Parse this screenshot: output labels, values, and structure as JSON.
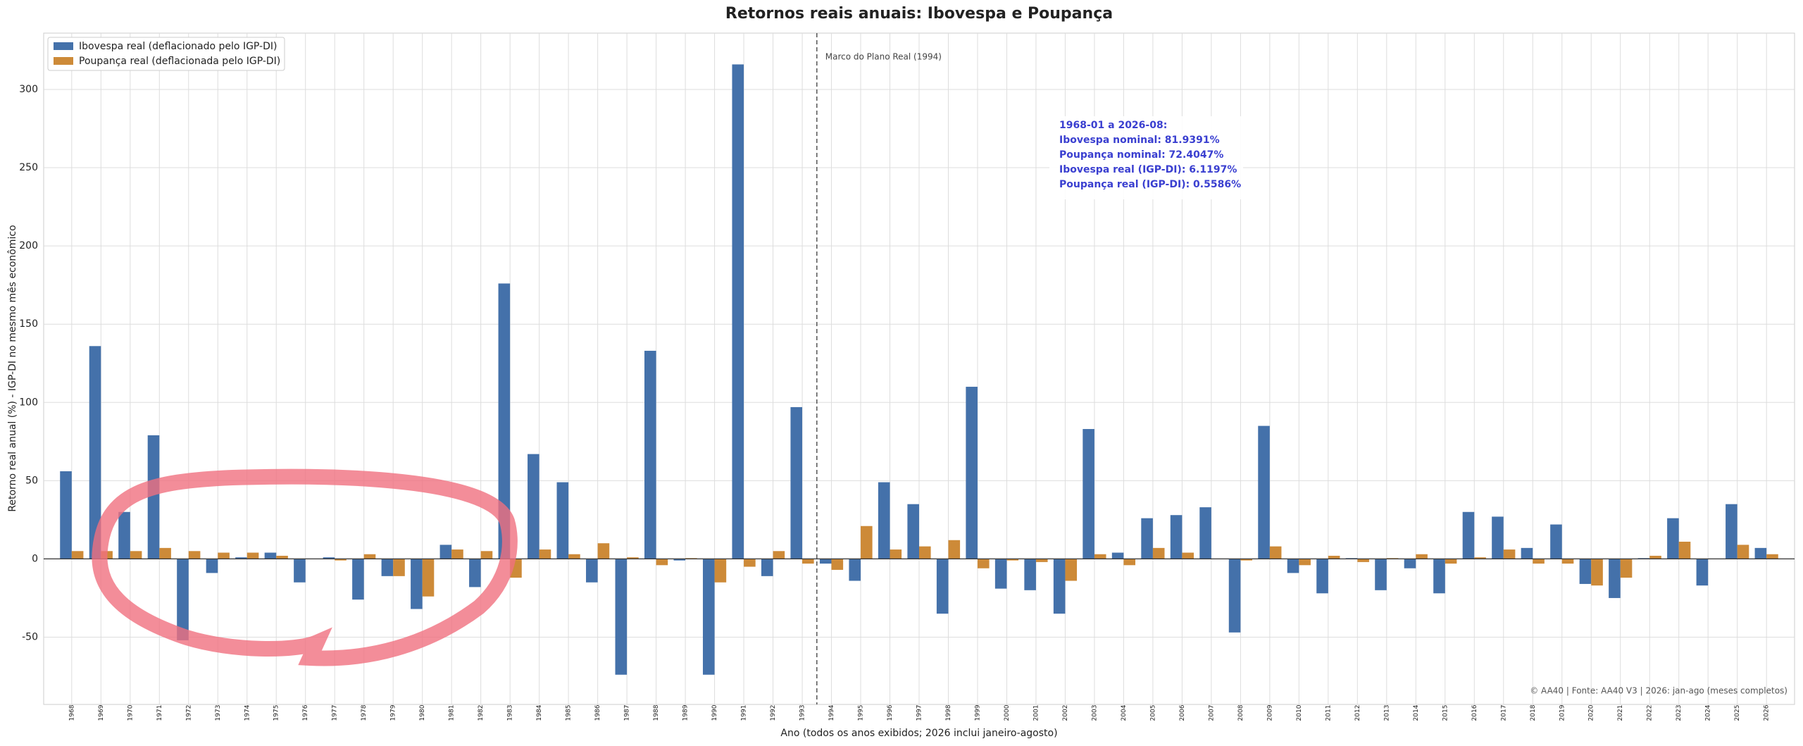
{
  "chart_data": {
    "type": "bar",
    "title": "Retornos reais anuais: Ibovespa e Poupança",
    "xlabel": "Ano (todos os anos exibidos; 2026 inclui janeiro-agosto)",
    "ylabel": "Retorno real anual (%) - IGP-DI no mesmo mês econômico",
    "x": [
      1968,
      1969,
      1970,
      1971,
      1972,
      1973,
      1974,
      1975,
      1976,
      1977,
      1978,
      1979,
      1980,
      1981,
      1982,
      1983,
      1984,
      1985,
      1986,
      1987,
      1988,
      1989,
      1990,
      1991,
      1992,
      1993,
      1994,
      1995,
      1996,
      1997,
      1998,
      1999,
      2000,
      2001,
      2002,
      2003,
      2004,
      2005,
      2006,
      2007,
      2008,
      2009,
      2010,
      2011,
      2012,
      2013,
      2014,
      2015,
      2016,
      2017,
      2018,
      2019,
      2020,
      2021,
      2022,
      2023,
      2024,
      2025,
      2026
    ],
    "series": [
      {
        "name": "Ibovespa real (deflacionado pelo IGP-DI)",
        "color": "#4471aa",
        "values": [
          56,
          136,
          30,
          79,
          -52,
          -9,
          1,
          4,
          -15,
          1,
          -26,
          -11,
          -32,
          9,
          -18,
          176,
          67,
          49,
          -15,
          -74,
          133,
          -1,
          -74,
          316,
          -11,
          97,
          -3,
          -14,
          49,
          35,
          -35,
          110,
          -19,
          -20,
          -35,
          83,
          4,
          26,
          28,
          33,
          -47,
          85,
          -9,
          -22,
          0.5,
          -20,
          -6,
          -22,
          30,
          27,
          7,
          22,
          -16,
          -25,
          0.5,
          26,
          -17,
          35,
          7
        ]
      },
      {
        "name": "Poupança real (deflacionada pelo IGP-DI)",
        "color": "#cd8a38",
        "values": [
          5,
          5,
          5,
          7,
          5,
          4,
          4,
          2,
          0,
          -1,
          3,
          -11,
          -24,
          6,
          5,
          -12,
          6,
          3,
          10,
          1,
          -4,
          0.5,
          -15,
          -5,
          5,
          -3,
          -7,
          21,
          6,
          8,
          12,
          -6,
          -1,
          -2,
          -14,
          3,
          -4,
          7,
          4,
          0,
          -1,
          8,
          -4,
          2,
          -2,
          0.5,
          3,
          -3,
          1,
          6,
          -3,
          -3,
          -17,
          -12,
          2,
          11,
          0,
          9,
          3
        ]
      }
    ],
    "xlim": [
      1967.04,
      2026.96
    ],
    "ylim": [
      -93,
      336
    ],
    "yticks": [
      -50,
      0,
      50,
      100,
      150,
      200,
      250,
      300
    ],
    "grid": true,
    "legend": "upper left",
    "vline": {
      "x": 1993.5,
      "label": "Marco do Plano Real (1994)"
    },
    "info_box": [
      "1968-01 a 2026-08:",
      "Ibovespa nominal: 81.9391%",
      "Poupança nominal: 72.4047%",
      "Ibovespa real (IGP-DI): 6.1197%",
      "Poupança real (IGP-DI): 0.5586%"
    ],
    "footer": "© AA40 | Fonte: AA40 V3 | 2026: jan-ago (meses completos)"
  }
}
